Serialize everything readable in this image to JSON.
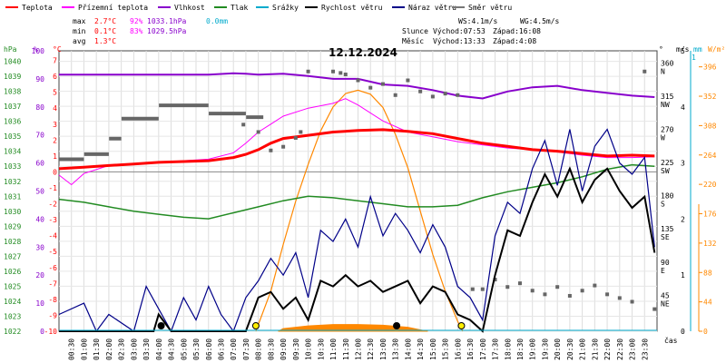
{
  "chart_data": {
    "type": "line",
    "title": "12.12.2024",
    "xlabel": "čas",
    "legend": [
      {
        "name": "Teplota",
        "color": "#ff0000"
      },
      {
        "name": "Přízemní teplota",
        "color": "#ff00ff"
      },
      {
        "name": "Vlhkost",
        "color": "#8800cc"
      },
      {
        "name": "Tlak",
        "color": "#228b22"
      },
      {
        "name": "Srážky",
        "color": "#00aacc"
      },
      {
        "name": "Rychlost větru",
        "color": "#000000"
      },
      {
        "name": "Náraz větru",
        "color": "#000088"
      },
      {
        "name": "Směr větru",
        "color": "#777777"
      }
    ],
    "stats": {
      "max_label": "max",
      "min_label": "min",
      "avg_label": "avg",
      "max_temp": "2.7°C",
      "max_hum": "92%",
      "max_press": "1033.1hPa",
      "max_rain": "0.0mm",
      "min_temp": "0.1°C",
      "min_hum": "83%",
      "min_press": "1029.5hPa",
      "avg_temp": "1.3°C"
    },
    "info": {
      "ws": "WS:4.1m/s",
      "wg": "WG:4.5m/s",
      "sun_label": "Slunce",
      "sun_rise": "Východ:07:53",
      "sun_set": "Západ:16:08",
      "moon_label": "Měsíc",
      "moon_rise": "Východ:13:33",
      "moon_set": "Západ:4:08"
    },
    "axis_units": {
      "hpa": "hPa",
      "pct": "%",
      "degc": "°C",
      "deg": "°",
      "ms": "m/s",
      "mm": "mm",
      "wm2": "W/m²"
    },
    "x_ticks": [
      "00:30",
      "01:00",
      "01:30",
      "02:00",
      "02:30",
      "03:00",
      "03:30",
      "04:00",
      "04:30",
      "05:00",
      "05:30",
      "06:00",
      "06:30",
      "07:00",
      "07:30",
      "08:00",
      "08:30",
      "09:00",
      "09:30",
      "10:00",
      "10:30",
      "11:00",
      "11:30",
      "12:00",
      "12:30",
      "13:00",
      "13:30",
      "14:00",
      "14:30",
      "15:00",
      "15:30",
      "16:00",
      "16:30",
      "17:00",
      "17:30",
      "18:00",
      "18:30",
      "19:00",
      "19:30",
      "20:00",
      "20:30",
      "21:00",
      "21:30",
      "22:00",
      "22:30",
      "23:00",
      "23:30"
    ],
    "hpa_ticks": [
      "1040",
      "1039",
      "1038",
      "1037",
      "1036",
      "1035",
      "1034",
      "1033",
      "1032",
      "1031",
      "1030",
      "1029",
      "1028",
      "1027",
      "1026",
      "1025",
      "1024",
      "1023",
      "1022"
    ],
    "pct_ticks": [
      "100",
      "90",
      "80",
      "70",
      "60",
      "50",
      "40",
      "30",
      "20",
      "10",
      "0"
    ],
    "temp_ticks": [
      "7",
      "6",
      "5",
      "4",
      "3",
      "2",
      "1",
      "0",
      "-1",
      "-2",
      "-3",
      "-4",
      "-5",
      "-6",
      "-7",
      "-8",
      "-9",
      "-10"
    ],
    "dir_ticks": [
      {
        "v": 360,
        "lbl": "N"
      },
      {
        "v": 315,
        "lbl": "NW"
      },
      {
        "v": 270,
        "lbl": "W"
      },
      {
        "v": 225,
        "lbl": "SW"
      },
      {
        "v": 180,
        "lbl": "S"
      },
      {
        "v": 135,
        "lbl": "SE"
      },
      {
        "v": 90,
        "lbl": "E"
      },
      {
        "v": 45,
        "lbl": "NE"
      }
    ],
    "ms_ticks": [
      "5",
      "4",
      "3",
      "2",
      "1",
      "0"
    ],
    "ms_top": "1",
    "sol_ticks": [
      "396",
      "352",
      "308",
      "264",
      "220",
      "176",
      "132",
      "88",
      "44",
      "0"
    ],
    "temperature": [
      [
        0,
        0.2
      ],
      [
        1,
        0.3
      ],
      [
        2,
        0.4
      ],
      [
        3,
        0.5
      ],
      [
        4,
        0.6
      ],
      [
        5,
        0.65
      ],
      [
        6,
        0.7
      ],
      [
        7,
        0.9
      ],
      [
        7.5,
        1.1
      ],
      [
        8,
        1.4
      ],
      [
        8.5,
        1.8
      ],
      [
        9,
        2.1
      ],
      [
        10,
        2.3
      ],
      [
        11,
        2.5
      ],
      [
        12,
        2.6
      ],
      [
        13,
        2.65
      ],
      [
        14,
        2.55
      ],
      [
        15,
        2.4
      ],
      [
        16,
        2.1
      ],
      [
        17,
        1.8
      ],
      [
        18,
        1.6
      ],
      [
        19,
        1.4
      ],
      [
        20,
        1.3
      ],
      [
        21,
        1.15
      ],
      [
        22,
        1.0
      ],
      [
        23,
        1.05
      ],
      [
        23.9,
        1.0
      ]
    ],
    "ground_temperature": [
      [
        0,
        -0.2
      ],
      [
        0.5,
        -0.8
      ],
      [
        1,
        -0.1
      ],
      [
        2,
        0.4
      ],
      [
        3,
        0.5
      ],
      [
        4,
        0.6
      ],
      [
        5,
        0.7
      ],
      [
        6,
        0.8
      ],
      [
        7,
        1.2
      ],
      [
        7.5,
        1.8
      ],
      [
        8,
        2.5
      ],
      [
        8.5,
        3.0
      ],
      [
        9,
        3.5
      ],
      [
        10,
        4.0
      ],
      [
        11,
        4.3
      ],
      [
        11.5,
        4.6
      ],
      [
        12,
        4.2
      ],
      [
        13,
        3.2
      ],
      [
        14,
        2.5
      ],
      [
        15,
        2.2
      ],
      [
        16,
        1.9
      ],
      [
        17,
        1.7
      ],
      [
        18,
        1.5
      ],
      [
        19,
        1.4
      ],
      [
        20,
        1.25
      ],
      [
        21,
        1.05
      ],
      [
        22,
        0.9
      ],
      [
        23,
        0.9
      ],
      [
        23.9,
        0.95
      ]
    ],
    "humidity": [
      [
        0,
        91.5
      ],
      [
        6,
        91.5
      ],
      [
        7,
        92
      ],
      [
        7.5,
        91.8
      ],
      [
        8,
        91.5
      ],
      [
        9,
        91.8
      ],
      [
        10,
        91
      ],
      [
        11,
        90
      ],
      [
        12,
        90
      ],
      [
        13,
        88
      ],
      [
        14,
        87.5
      ],
      [
        15,
        86
      ],
      [
        15.5,
        85
      ],
      [
        16,
        84
      ],
      [
        17,
        83
      ],
      [
        18,
        85.5
      ],
      [
        19,
        87
      ],
      [
        20,
        87.5
      ],
      [
        21,
        86
      ],
      [
        22,
        85
      ],
      [
        23,
        84
      ],
      [
        23.9,
        83.5
      ]
    ],
    "pressure": [
      [
        0,
        1030.8
      ],
      [
        1,
        1030.6
      ],
      [
        2,
        1030.3
      ],
      [
        3,
        1030.0
      ],
      [
        4,
        1029.8
      ],
      [
        5,
        1029.6
      ],
      [
        6,
        1029.5
      ],
      [
        7,
        1029.9
      ],
      [
        8,
        1030.3
      ],
      [
        9,
        1030.7
      ],
      [
        10,
        1031.0
      ],
      [
        11,
        1030.9
      ],
      [
        12,
        1030.7
      ],
      [
        13,
        1030.5
      ],
      [
        14,
        1030.3
      ],
      [
        15,
        1030.3
      ],
      [
        16,
        1030.4
      ],
      [
        17,
        1030.9
      ],
      [
        18,
        1031.3
      ],
      [
        19,
        1031.6
      ],
      [
        20,
        1031.9
      ],
      [
        21,
        1032.3
      ],
      [
        22,
        1032.8
      ],
      [
        23,
        1033.1
      ],
      [
        23.9,
        1033.0
      ]
    ],
    "wind_speed": [
      [
        0,
        0
      ],
      [
        3.8,
        0
      ],
      [
        4,
        0.3
      ],
      [
        4.5,
        0
      ],
      [
        7.5,
        0
      ],
      [
        8,
        0.6
      ],
      [
        8.5,
        0.7
      ],
      [
        9,
        0.4
      ],
      [
        9.5,
        0.6
      ],
      [
        10,
        0.2
      ],
      [
        10.5,
        0.9
      ],
      [
        11,
        0.8
      ],
      [
        11.5,
        1.0
      ],
      [
        12,
        0.8
      ],
      [
        12.5,
        0.9
      ],
      [
        13,
        0.7
      ],
      [
        13.5,
        0.8
      ],
      [
        14,
        0.9
      ],
      [
        14.5,
        0.5
      ],
      [
        15,
        0.8
      ],
      [
        15.5,
        0.7
      ],
      [
        16,
        0.3
      ],
      [
        16.5,
        0.2
      ],
      [
        17,
        0
      ],
      [
        17.5,
        1.0
      ],
      [
        18,
        1.8
      ],
      [
        18.5,
        1.7
      ],
      [
        19,
        2.3
      ],
      [
        19.5,
        2.8
      ],
      [
        20,
        2.4
      ],
      [
        20.5,
        2.9
      ],
      [
        21,
        2.3
      ],
      [
        21.5,
        2.7
      ],
      [
        22,
        2.9
      ],
      [
        22.5,
        2.5
      ],
      [
        23,
        2.2
      ],
      [
        23.5,
        2.4
      ],
      [
        23.9,
        1.4
      ]
    ],
    "wind_gust": [
      [
        0,
        0.3
      ],
      [
        1,
        0.5
      ],
      [
        1.5,
        0
      ],
      [
        2,
        0.3
      ],
      [
        3,
        0
      ],
      [
        3.5,
        0.8
      ],
      [
        4,
        0.4
      ],
      [
        4.5,
        0
      ],
      [
        5,
        0.6
      ],
      [
        5.5,
        0.2
      ],
      [
        6,
        0.8
      ],
      [
        6.5,
        0.3
      ],
      [
        7,
        0
      ],
      [
        7.5,
        0.6
      ],
      [
        8,
        0.9
      ],
      [
        8.5,
        1.3
      ],
      [
        9,
        1.0
      ],
      [
        9.5,
        1.4
      ],
      [
        10,
        0.6
      ],
      [
        10.5,
        1.8
      ],
      [
        11,
        1.6
      ],
      [
        11.5,
        2.0
      ],
      [
        12,
        1.5
      ],
      [
        12.5,
        2.4
      ],
      [
        13,
        1.7
      ],
      [
        13.5,
        2.1
      ],
      [
        14,
        1.8
      ],
      [
        14.5,
        1.4
      ],
      [
        15,
        1.9
      ],
      [
        15.5,
        1.5
      ],
      [
        16,
        0.8
      ],
      [
        16.5,
        0.6
      ],
      [
        17,
        0.2
      ],
      [
        17.5,
        1.7
      ],
      [
        18,
        2.3
      ],
      [
        18.5,
        2.1
      ],
      [
        19,
        2.9
      ],
      [
        19.5,
        3.4
      ],
      [
        20,
        2.6
      ],
      [
        20.5,
        3.6
      ],
      [
        21,
        2.5
      ],
      [
        21.5,
        3.3
      ],
      [
        22,
        3.6
      ],
      [
        22.5,
        3.0
      ],
      [
        23,
        2.8
      ],
      [
        23.5,
        3.1
      ],
      [
        23.9,
        1.5
      ]
    ],
    "wind_direction_steps": [
      [
        0,
        233
      ],
      [
        1,
        233
      ],
      [
        1.01,
        240
      ],
      [
        2,
        240
      ],
      [
        2.01,
        261
      ],
      [
        2.5,
        261
      ],
      [
        2.51,
        288
      ],
      [
        4,
        288
      ],
      [
        4.01,
        306
      ],
      [
        6,
        306
      ],
      [
        6.01,
        295
      ],
      [
        7.5,
        295
      ],
      [
        7.51,
        290
      ],
      [
        8.2,
        290
      ]
    ],
    "wind_direction_points": [
      [
        7.4,
        280
      ],
      [
        8,
        270
      ],
      [
        8.5,
        245
      ],
      [
        9,
        250
      ],
      [
        9.5,
        262
      ],
      [
        9.7,
        270
      ],
      [
        10,
        352
      ],
      [
        11,
        352
      ],
      [
        11.3,
        350
      ],
      [
        11.5,
        348
      ],
      [
        12,
        340
      ],
      [
        12.5,
        330
      ],
      [
        13,
        335
      ],
      [
        13.5,
        320
      ],
      [
        14,
        340
      ],
      [
        14.5,
        325
      ],
      [
        15,
        318
      ],
      [
        15.5,
        322
      ],
      [
        16,
        320
      ],
      [
        16.6,
        57
      ],
      [
        17,
        57
      ],
      [
        17.5,
        70
      ],
      [
        18,
        60
      ],
      [
        18.5,
        65
      ],
      [
        19,
        55
      ],
      [
        19.5,
        50
      ],
      [
        20,
        60
      ],
      [
        20.5,
        48
      ],
      [
        21,
        55
      ],
      [
        21.5,
        62
      ],
      [
        22,
        50
      ],
      [
        22.5,
        45
      ],
      [
        23,
        40
      ],
      [
        23.5,
        352
      ],
      [
        23.9,
        30
      ]
    ],
    "solar": [
      [
        7.9,
        0
      ],
      [
        8.5,
        60
      ],
      [
        9,
        130
      ],
      [
        9.5,
        195
      ],
      [
        10,
        250
      ],
      [
        10.5,
        300
      ],
      [
        11,
        336
      ],
      [
        11.5,
        356
      ],
      [
        12,
        361
      ],
      [
        12.5,
        355
      ],
      [
        13,
        335
      ],
      [
        13.5,
        295
      ],
      [
        14,
        245
      ],
      [
        14.5,
        180
      ],
      [
        15,
        115
      ],
      [
        15.5,
        60
      ],
      [
        16,
        15
      ],
      [
        16.2,
        0
      ]
    ],
    "solar_fill": [
      [
        8.8,
        0
      ],
      [
        9,
        4
      ],
      [
        10,
        8
      ],
      [
        11,
        10
      ],
      [
        12,
        10
      ],
      [
        13,
        9
      ],
      [
        14,
        6
      ],
      [
        14.5,
        2
      ],
      [
        14.8,
        0
      ]
    ],
    "markers": [
      {
        "x": 4.1,
        "type": "moon-set"
      },
      {
        "x": 7.9,
        "type": "sun-rise"
      },
      {
        "x": 13.55,
        "type": "moon-rise"
      },
      {
        "x": 16.15,
        "type": "sun-set"
      }
    ],
    "ylim_temp": [
      -10,
      7.6
    ],
    "ylim_dir": [
      0,
      380
    ],
    "ylim_ms": [
      0,
      5
    ],
    "ylim_solar": [
      0,
      420
    ]
  }
}
